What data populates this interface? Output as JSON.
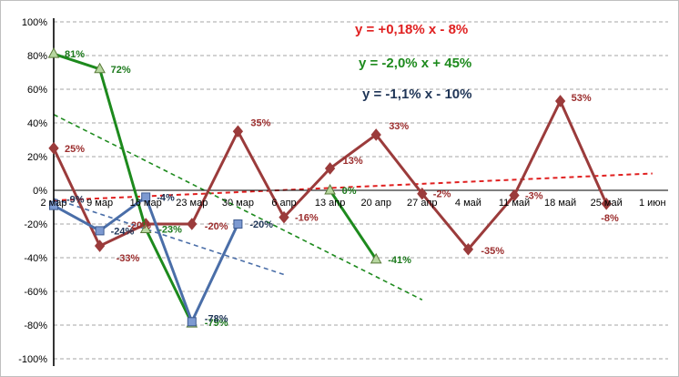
{
  "chart_data": {
    "type": "line",
    "categories": [
      "2 мар",
      "9 мар",
      "16 мар",
      "23 мар",
      "30 мар",
      "6 апр",
      "13 апр",
      "20 апр",
      "27 апр",
      "4 май",
      "11 май",
      "18 май",
      "25 май",
      "1 июн"
    ],
    "y_ticks": [
      "100%",
      "80%",
      "60%",
      "40%",
      "20%",
      "0%",
      "-20%",
      "-40%",
      "-60%",
      "-80%",
      "-100%"
    ],
    "ylim": [
      -100,
      100
    ],
    "grid": true,
    "colors": {
      "red": "#9b3b3b",
      "green": "#1d8a1d",
      "blue": "#4a6ea8",
      "trend_red": "#e02020",
      "trend_green": "#1d8a1d",
      "trend_blue": "#4a6ea8",
      "eq_red": "#e02020",
      "eq_green": "#1d8a1d",
      "eq_blue": "#1f3557"
    },
    "series": [
      {
        "key": "red",
        "marker": "diamond",
        "points": [
          {
            "i": 0,
            "v": 25,
            "label": "25%"
          },
          {
            "i": 1,
            "v": -33,
            "label": "-33%"
          },
          {
            "i": 2,
            "v": -20,
            "label": "-20%"
          },
          {
            "i": 3,
            "v": -20,
            "label": "-20%"
          },
          {
            "i": 4,
            "v": 35,
            "label": "35%"
          },
          {
            "i": 5,
            "v": -16,
            "label": "-16%"
          },
          {
            "i": 6,
            "v": 13,
            "label": "13%"
          },
          {
            "i": 7,
            "v": 33,
            "label": "33%"
          },
          {
            "i": 8,
            "v": -2,
            "label": "-2%"
          },
          {
            "i": 9,
            "v": -35,
            "label": "-35%"
          },
          {
            "i": 10,
            "v": -3,
            "label": "-3%"
          },
          {
            "i": 11,
            "v": 53,
            "label": "53%"
          },
          {
            "i": 12,
            "v": -8,
            "label": "-8%"
          }
        ]
      },
      {
        "key": "green",
        "marker": "triangle",
        "points": [
          {
            "i": 0,
            "v": 81,
            "label": "81%"
          },
          {
            "i": 1,
            "v": 72,
            "label": "72%"
          },
          {
            "i": 2,
            "v": -23,
            "label": "-23%"
          },
          {
            "i": 3,
            "v": -79,
            "label": "-79%"
          }
        ]
      },
      {
        "key": "green2",
        "marker": "triangle",
        "points": [
          {
            "i": 6,
            "v": 0,
            "label": "0%"
          },
          {
            "i": 7,
            "v": -41,
            "label": "-41%"
          }
        ]
      },
      {
        "key": "blue",
        "marker": "square",
        "points": [
          {
            "i": 0,
            "v": -9,
            "label": "-9%"
          },
          {
            "i": 1,
            "v": -24,
            "label": "-24%"
          },
          {
            "i": 2,
            "v": -4,
            "label": "-4%"
          },
          {
            "i": 3,
            "v": -78,
            "label": "-78%"
          },
          {
            "i": 4,
            "v": -20,
            "label": "-20%"
          }
        ]
      }
    ],
    "trendlines": [
      {
        "key": "trend_red",
        "from": {
          "i": 0,
          "v": -6
        },
        "to": {
          "i": 13,
          "v": 10
        }
      },
      {
        "key": "trend_green",
        "from": {
          "i": 0,
          "v": 45
        },
        "to": {
          "i": 8,
          "v": -65
        }
      },
      {
        "key": "trend_blue",
        "from": {
          "i": 0,
          "v": -5
        },
        "to": {
          "i": 5,
          "v": -50
        }
      }
    ],
    "equations": {
      "red": "y = +0,18% x - 8%",
      "green": "y = -2,0% x + 45%",
      "blue": "y = -1,1% x - 10%"
    }
  }
}
